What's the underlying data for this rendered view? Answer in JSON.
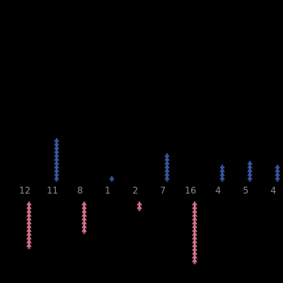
{
  "chart_data": {
    "type": "pictogram",
    "values": [
      12,
      11,
      8,
      1,
      2,
      7,
      16,
      4,
      5,
      4
    ],
    "colors": [
      "#e07a93",
      "#3a5ea8",
      "#e07a93",
      "#3a5ea8",
      "#e07a93",
      "#3a5ea8",
      "#e07a93",
      "#3a5ea8",
      "#3a5ea8",
      "#3a5ea8"
    ],
    "directions": [
      "down",
      "up",
      "down",
      "up",
      "down",
      "up",
      "down",
      "up",
      "up",
      "up"
    ]
  }
}
